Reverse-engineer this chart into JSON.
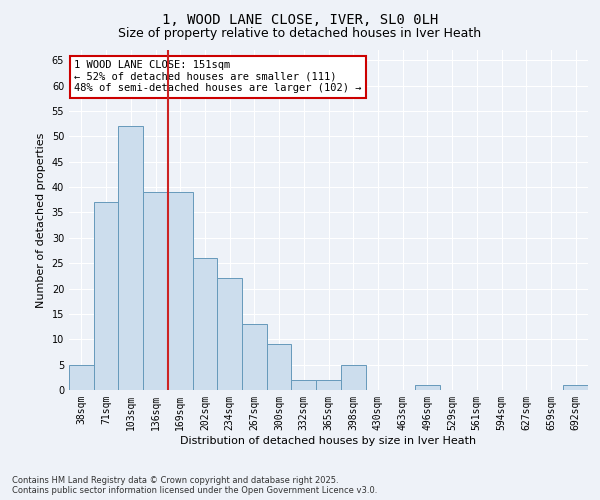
{
  "title": "1, WOOD LANE CLOSE, IVER, SL0 0LH",
  "subtitle": "Size of property relative to detached houses in Iver Heath",
  "xlabel": "Distribution of detached houses by size in Iver Heath",
  "ylabel": "Number of detached properties",
  "categories": [
    "38sqm",
    "71sqm",
    "103sqm",
    "136sqm",
    "169sqm",
    "202sqm",
    "234sqm",
    "267sqm",
    "300sqm",
    "332sqm",
    "365sqm",
    "398sqm",
    "430sqm",
    "463sqm",
    "496sqm",
    "529sqm",
    "561sqm",
    "594sqm",
    "627sqm",
    "659sqm",
    "692sqm"
  ],
  "values": [
    5,
    37,
    52,
    39,
    39,
    26,
    22,
    13,
    9,
    2,
    2,
    5,
    0,
    0,
    1,
    0,
    0,
    0,
    0,
    0,
    1
  ],
  "bar_color": "#ccdded",
  "bar_edge_color": "#6699bb",
  "red_line_x": 3.5,
  "annotation_text": "1 WOOD LANE CLOSE: 151sqm\n← 52% of detached houses are smaller (111)\n48% of semi-detached houses are larger (102) →",
  "annotation_box_color": "#ffffff",
  "annotation_box_edge_color": "#cc0000",
  "red_line_color": "#cc2222",
  "ylim": [
    0,
    67
  ],
  "yticks": [
    0,
    5,
    10,
    15,
    20,
    25,
    30,
    35,
    40,
    45,
    50,
    55,
    60,
    65
  ],
  "footer": "Contains HM Land Registry data © Crown copyright and database right 2025.\nContains public sector information licensed under the Open Government Licence v3.0.",
  "bg_color": "#eef2f8",
  "grid_color": "#ffffff",
  "title_fontsize": 10,
  "subtitle_fontsize": 9,
  "tick_fontsize": 7,
  "ylabel_fontsize": 8,
  "xlabel_fontsize": 8,
  "footer_fontsize": 6
}
